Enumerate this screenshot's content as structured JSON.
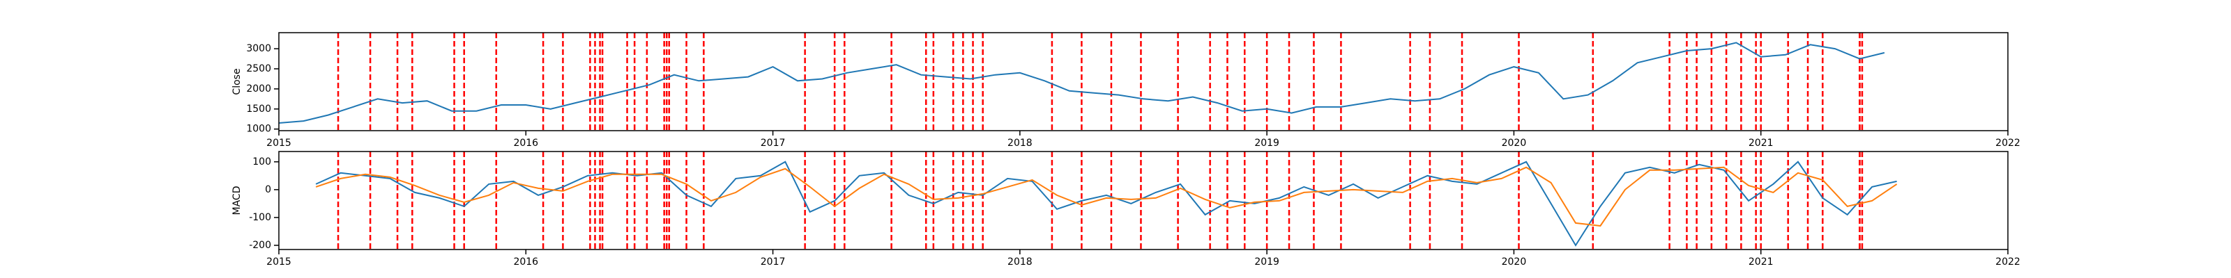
{
  "chart_data": [
    {
      "type": "line",
      "ylabel": "Close",
      "x": [
        2015.0,
        2015.1,
        2015.2,
        2015.3,
        2015.4,
        2015.5,
        2015.6,
        2015.7,
        2015.8,
        2015.9,
        2016.0,
        2016.1,
        2016.2,
        2016.3,
        2016.4,
        2016.5,
        2016.6,
        2016.7,
        2016.8,
        2016.9,
        2017.0,
        2017.1,
        2017.2,
        2017.3,
        2017.4,
        2017.5,
        2017.6,
        2017.7,
        2017.8,
        2017.9,
        2018.0,
        2018.1,
        2018.2,
        2018.3,
        2018.4,
        2018.5,
        2018.6,
        2018.7,
        2018.8,
        2018.9,
        2019.0,
        2019.1,
        2019.2,
        2019.3,
        2019.4,
        2019.5,
        2019.6,
        2019.7,
        2019.8,
        2019.9,
        2020.0,
        2020.1,
        2020.2,
        2020.3,
        2020.4,
        2020.5,
        2020.6,
        2020.7,
        2020.8,
        2020.9,
        2021.0,
        2021.1,
        2021.2,
        2021.3,
        2021.4,
        2021.5
      ],
      "series": [
        {
          "color": "#1f77b4",
          "values": [
            1150,
            1200,
            1350,
            1550,
            1750,
            1650,
            1700,
            1450,
            1450,
            1600,
            1600,
            1500,
            1650,
            1800,
            1950,
            2100,
            2350,
            2200,
            2250,
            2300,
            2550,
            2200,
            2250,
            2400,
            2500,
            2600,
            2350,
            2300,
            2250,
            2350,
            2400,
            2200,
            1950,
            1900,
            1850,
            1750,
            1700,
            1800,
            1650,
            1450,
            1500,
            1400,
            1550,
            1550,
            1650,
            1750,
            1700,
            1750,
            2000,
            2350,
            2550,
            2400,
            1750,
            1850,
            2200,
            2650,
            2800,
            2950,
            3000,
            3150,
            2800,
            2850,
            3100,
            3000,
            2750,
            2900
          ]
        }
      ],
      "vlines": [
        2015.24,
        2015.37,
        2015.48,
        2015.54,
        2015.71,
        2015.75,
        2015.88,
        2016.07,
        2016.15,
        2016.26,
        2016.28,
        2016.3,
        2016.31,
        2016.41,
        2016.44,
        2016.49,
        2016.56,
        2016.57,
        2016.58,
        2016.65,
        2016.72,
        2017.13,
        2017.25,
        2017.29,
        2017.48,
        2017.62,
        2017.65,
        2017.73,
        2017.77,
        2017.81,
        2017.85,
        2018.13,
        2018.25,
        2018.37,
        2018.49,
        2018.64,
        2018.77,
        2018.84,
        2018.91,
        2019.0,
        2019.09,
        2019.19,
        2019.3,
        2019.58,
        2019.66,
        2019.79,
        2020.02,
        2020.32,
        2020.63,
        2020.7,
        2020.74,
        2020.8,
        2020.86,
        2020.92,
        2020.98,
        2021.0,
        2021.11,
        2021.19,
        2021.25,
        2021.4,
        2021.4,
        2021.41
      ],
      "vline_color": "#ff0000",
      "xlim": [
        2015,
        2022
      ],
      "xticks": [
        2015,
        2016,
        2017,
        2018,
        2019,
        2020,
        2021,
        2022
      ],
      "ylim": [
        960,
        3400
      ],
      "yticks": [
        1000,
        1500,
        2000,
        2500,
        3000
      ]
    },
    {
      "type": "line",
      "ylabel": "MACD",
      "x": [
        2015.15,
        2015.25,
        2015.35,
        2015.45,
        2015.55,
        2015.65,
        2015.75,
        2015.85,
        2015.95,
        2016.05,
        2016.15,
        2016.25,
        2016.35,
        2016.45,
        2016.55,
        2016.65,
        2016.75,
        2016.85,
        2016.95,
        2017.05,
        2017.15,
        2017.25,
        2017.35,
        2017.45,
        2017.55,
        2017.65,
        2017.75,
        2017.85,
        2017.95,
        2018.05,
        2018.15,
        2018.25,
        2018.35,
        2018.45,
        2018.55,
        2018.65,
        2018.75,
        2018.85,
        2018.95,
        2019.05,
        2019.15,
        2019.25,
        2019.35,
        2019.45,
        2019.55,
        2019.65,
        2019.75,
        2019.85,
        2019.95,
        2020.05,
        2020.15,
        2020.25,
        2020.35,
        2020.45,
        2020.55,
        2020.65,
        2020.75,
        2020.85,
        2020.95,
        2021.05,
        2021.15,
        2021.25,
        2021.35,
        2021.45,
        2021.55
      ],
      "series": [
        {
          "color": "#1f77b4",
          "values": [
            20,
            60,
            50,
            40,
            -10,
            -30,
            -60,
            20,
            30,
            -20,
            10,
            50,
            60,
            50,
            60,
            -20,
            -60,
            40,
            50,
            100,
            -80,
            -40,
            50,
            60,
            -20,
            -50,
            -10,
            -20,
            40,
            30,
            -70,
            -40,
            -20,
            -50,
            -10,
            20,
            -90,
            -40,
            -50,
            -30,
            10,
            -20,
            20,
            -30,
            10,
            50,
            30,
            20,
            60,
            100,
            -50,
            -200,
            -60,
            60,
            80,
            60,
            90,
            70,
            -40,
            20,
            100,
            -30,
            -90,
            10,
            30
          ]
        },
        {
          "color": "#ff7f0e",
          "values": [
            10,
            40,
            55,
            45,
            15,
            -20,
            -45,
            -20,
            25,
            5,
            -5,
            30,
            55,
            55,
            55,
            20,
            -40,
            -10,
            45,
            75,
            10,
            -60,
            5,
            55,
            20,
            -35,
            -30,
            -15,
            10,
            35,
            -20,
            -55,
            -30,
            -35,
            -30,
            5,
            -35,
            -65,
            -45,
            -40,
            -10,
            -5,
            0,
            -5,
            -10,
            30,
            40,
            25,
            40,
            80,
            25,
            -120,
            -130,
            0,
            70,
            70,
            75,
            80,
            15,
            -10,
            60,
            35,
            -60,
            -40,
            20
          ]
        }
      ],
      "vlines": [
        2015.24,
        2015.37,
        2015.48,
        2015.54,
        2015.71,
        2015.75,
        2015.88,
        2016.07,
        2016.15,
        2016.26,
        2016.28,
        2016.3,
        2016.31,
        2016.41,
        2016.44,
        2016.49,
        2016.56,
        2016.57,
        2016.58,
        2016.65,
        2016.72,
        2017.13,
        2017.25,
        2017.29,
        2017.48,
        2017.62,
        2017.65,
        2017.73,
        2017.77,
        2017.81,
        2017.85,
        2018.13,
        2018.25,
        2018.37,
        2018.49,
        2018.64,
        2018.77,
        2018.84,
        2018.91,
        2019.0,
        2019.09,
        2019.19,
        2019.3,
        2019.58,
        2019.66,
        2019.79,
        2020.02,
        2020.32,
        2020.63,
        2020.7,
        2020.74,
        2020.8,
        2020.86,
        2020.92,
        2020.98,
        2021.0,
        2021.11,
        2021.19,
        2021.25,
        2021.4,
        2021.4,
        2021.41
      ],
      "vline_color": "#ff0000",
      "xlim": [
        2015,
        2022
      ],
      "xticks": [
        2015,
        2016,
        2017,
        2018,
        2019,
        2020,
        2021,
        2022
      ],
      "ylim": [
        -215,
        137
      ],
      "yticks": [
        -200,
        -100,
        0,
        100
      ]
    }
  ]
}
